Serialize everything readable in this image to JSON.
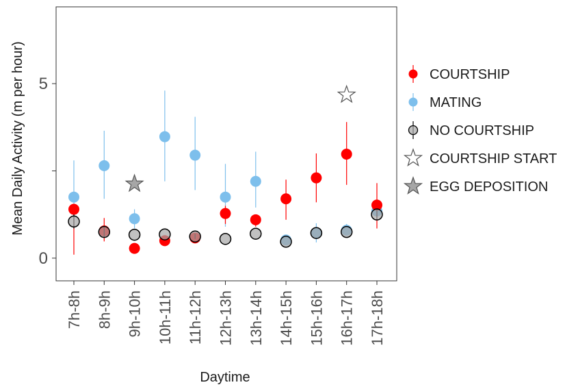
{
  "chart_data": {
    "type": "scatter",
    "xlabel": "Daytime",
    "ylabel": "Mean Daily Activity (m per hour)",
    "ylim": [
      -0.65,
      7.2
    ],
    "y_ticks": [
      "0",
      "5"
    ],
    "y_tick_values": [
      0,
      5
    ],
    "categories": [
      "7h-8h",
      "8h-9h",
      "9h-10h",
      "10h-11h",
      "11h-12h",
      "12h-13h",
      "13h-14h",
      "14h-15h",
      "15h-16h",
      "16h-17h",
      "17h-18h"
    ],
    "grid": false,
    "legend_position": "right",
    "series": [
      {
        "name": "COURTSHIP",
        "marker": "circle",
        "color": "#ff0000",
        "values": [
          1.4,
          0.78,
          0.28,
          0.5,
          0.58,
          1.28,
          1.1,
          1.7,
          2.3,
          2.98,
          1.52
        ],
        "err_low": [
          0.1,
          0.48,
          0.28,
          0.4,
          0.5,
          0.98,
          0.9,
          1.1,
          1.6,
          2.1,
          0.85
        ],
        "err_high": [
          1.4,
          1.15,
          0.28,
          0.6,
          0.62,
          1.5,
          1.2,
          2.25,
          3.0,
          3.9,
          2.15
        ]
      },
      {
        "name": "MATING",
        "marker": "circle",
        "color": "#7dbfec",
        "values": [
          1.75,
          2.65,
          1.13,
          3.48,
          2.95,
          1.75,
          2.2,
          0.52,
          0.72,
          0.8,
          1.35
        ],
        "err_low": [
          0.9,
          1.7,
          0.85,
          2.2,
          1.95,
          0.9,
          1.45,
          0.45,
          0.45,
          0.65,
          1.2
        ],
        "err_high": [
          2.8,
          3.65,
          1.4,
          4.8,
          4.05,
          2.7,
          3.05,
          0.6,
          1.0,
          0.98,
          1.5
        ]
      },
      {
        "name": "NO COURTSHIP",
        "marker": "circle",
        "color": "#a6a6a6",
        "values": [
          1.05,
          0.75,
          0.67,
          0.68,
          0.62,
          0.55,
          0.7,
          0.47,
          0.72,
          0.75,
          1.25
        ],
        "err_low": [
          0.85,
          0.6,
          0.67,
          0.68,
          0.55,
          0.55,
          0.7,
          0.47,
          0.72,
          0.75,
          1.1
        ],
        "err_high": [
          1.25,
          0.9,
          0.67,
          0.68,
          0.7,
          0.55,
          0.7,
          0.47,
          0.72,
          0.75,
          1.4
        ]
      },
      {
        "name": "COURTSHIP START",
        "marker": "star-open",
        "color": "#ffffff",
        "points": [
          {
            "x": "16h-17h",
            "y": 4.68
          }
        ]
      },
      {
        "name": "EGG DEPOSITION",
        "marker": "star-filled",
        "color": "#a6a6a6",
        "points": [
          {
            "x": "9h-10h",
            "y": 2.13
          }
        ]
      }
    ]
  }
}
